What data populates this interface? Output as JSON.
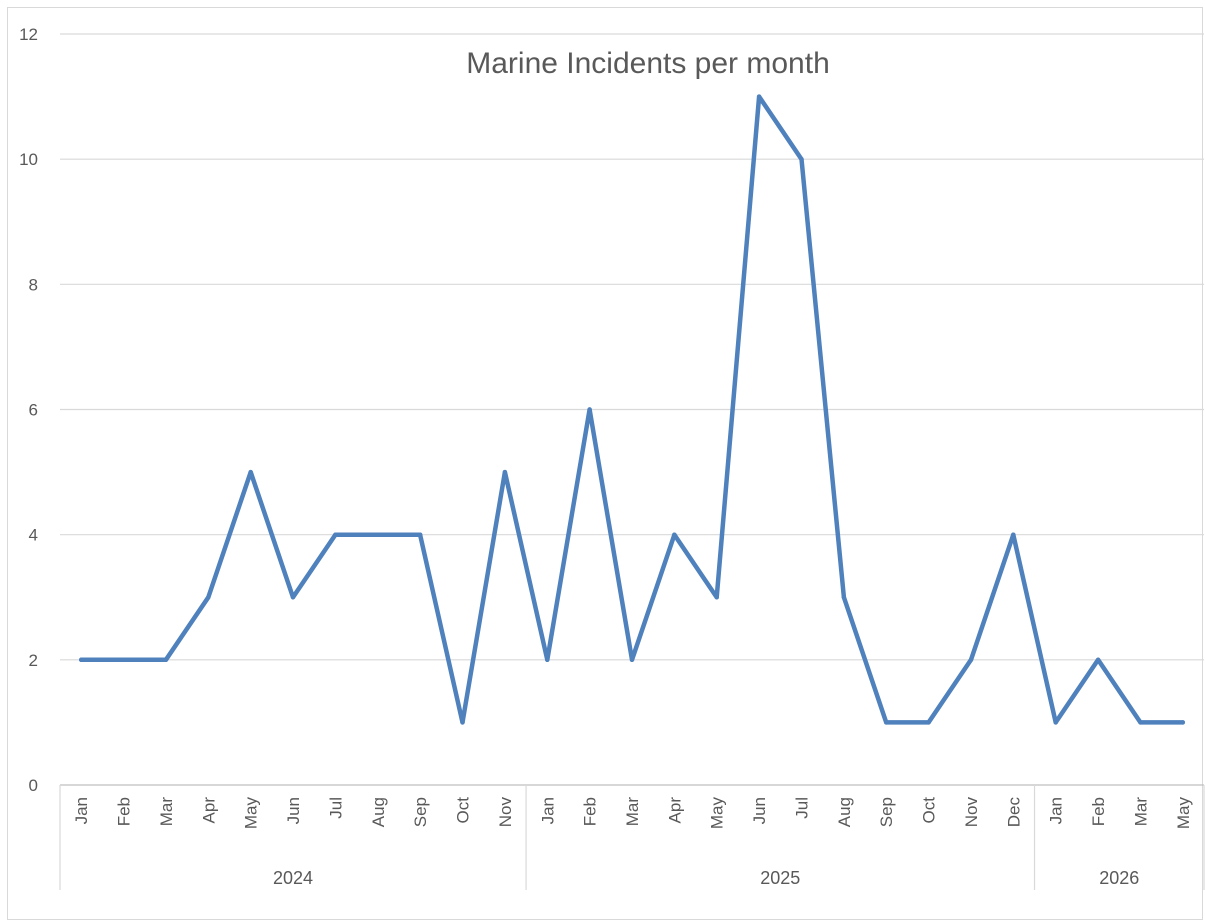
{
  "chart_data": {
    "type": "line",
    "title": "Marine Incidents per month",
    "xlabel": "",
    "ylabel": "",
    "ylim": [
      0,
      12
    ],
    "yticks": [
      0,
      2,
      4,
      6,
      8,
      10,
      12
    ],
    "grid": true,
    "legend": "none",
    "categories": [
      "Jan",
      "Feb",
      "Mar",
      "Apr",
      "May",
      "Jun",
      "Jul",
      "Aug",
      "Sep",
      "Oct",
      "Nov",
      "Jan",
      "Feb",
      "Mar",
      "Apr",
      "May",
      "Jun",
      "Jul",
      "Aug",
      "Sep",
      "Oct",
      "Nov",
      "Dec",
      "Jan",
      "Feb",
      "Mar",
      "May"
    ],
    "groups": [
      {
        "label": "2024",
        "count": 11
      },
      {
        "label": "2025",
        "count": 12
      },
      {
        "label": "2026",
        "count": 4
      }
    ],
    "series": [
      {
        "values": [
          2,
          2,
          2,
          3,
          5,
          3,
          4,
          4,
          4,
          1,
          5,
          2,
          6,
          2,
          4,
          3,
          11,
          10,
          3,
          1,
          1,
          2,
          4,
          1,
          2,
          1,
          1
        ],
        "color": "#4f81bd"
      }
    ]
  }
}
